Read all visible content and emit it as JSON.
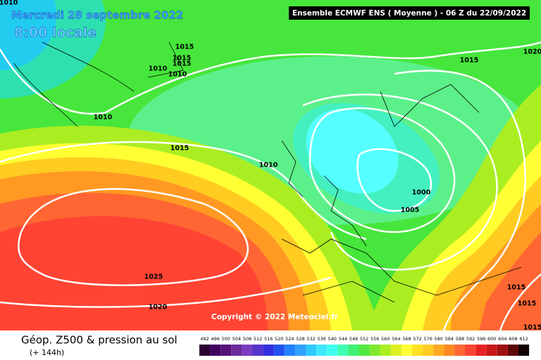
{
  "header": {
    "date": "Mercredi 28 septembre 2022",
    "time": "8:00 locale",
    "model": "Ensemble ECMWF ENS  ( Moyenne )  -  06 Z du 22/09/2022"
  },
  "contour_labels": [
    "1010",
    "1015",
    "1015",
    "1015",
    "1010",
    "1010",
    "1010",
    "1015",
    "1010",
    "1015",
    "1020",
    "1000",
    "1005",
    "1025",
    "1020",
    "1015",
    "1015",
    "1015"
  ],
  "copyright": "Copyright © 2022 Meteociel.fr",
  "footer": {
    "title": "Géop. Z500 & pression au sol",
    "subtitle": "(+ 144h)"
  },
  "legend": {
    "labels": [
      "492",
      "496",
      "500",
      "504",
      "508",
      "512",
      "516",
      "520",
      "524",
      "528",
      "532",
      "536",
      "540",
      "544",
      "548",
      "552",
      "556",
      "560",
      "564",
      "568",
      "572",
      "576",
      "580",
      "584",
      "588",
      "592",
      "596",
      "600",
      "604",
      "608",
      "612"
    ]
  }
}
